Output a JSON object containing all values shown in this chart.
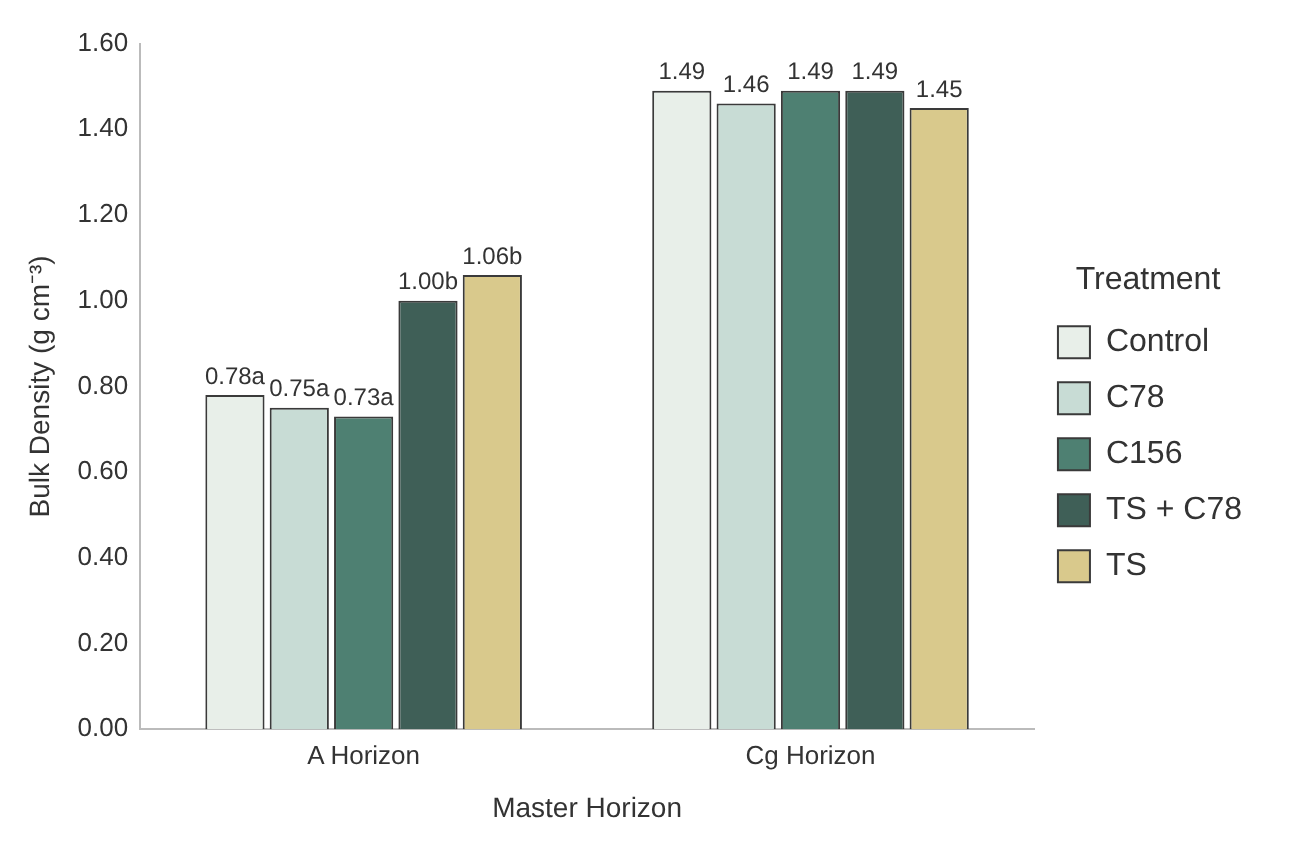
{
  "chart_data": {
    "type": "bar",
    "xlabel": "Master Horizon",
    "ylabel": "Bulk Density (g cm⁻³)",
    "legend_title": "Treatment",
    "legend": "right",
    "categories": [
      "A Horizon",
      "Cg Horizon"
    ],
    "ylim": [
      0,
      1.6
    ],
    "yticks": [
      {
        "value": 0,
        "label": "0.00"
      },
      {
        "value": 0.2,
        "label": "0.20"
      },
      {
        "value": 0.4,
        "label": "0.40"
      },
      {
        "value": 0.6,
        "label": "0.60"
      },
      {
        "value": 0.8,
        "label": "0.80"
      },
      {
        "value": 1,
        "label": "1.00"
      },
      {
        "value": 1.2,
        "label": "1.20"
      },
      {
        "value": 1.4,
        "label": "1.40"
      },
      {
        "value": 1.6,
        "label": "1.60"
      }
    ],
    "series": [
      {
        "name": "Control",
        "color": "#e8efe9",
        "values": [
          0.78,
          1.49
        ],
        "value_labels": [
          "0.78a",
          "1.49"
        ]
      },
      {
        "name": "C78",
        "color": "#c8dcd5",
        "values": [
          0.75,
          1.46
        ],
        "value_labels": [
          "0.75a",
          "1.46"
        ]
      },
      {
        "name": "C156",
        "color": "#4e8072",
        "values": [
          0.73,
          1.49
        ],
        "value_labels": [
          "0.73a",
          "1.49"
        ]
      },
      {
        "name": "TS + C78",
        "color": "#3f5f57",
        "values": [
          1.0,
          1.49
        ],
        "value_labels": [
          "1.00b",
          "1.49"
        ]
      },
      {
        "name": "TS",
        "color": "#d9c98c",
        "values": [
          1.06,
          1.45
        ],
        "value_labels": [
          "1.06b",
          "1.45"
        ]
      }
    ]
  }
}
